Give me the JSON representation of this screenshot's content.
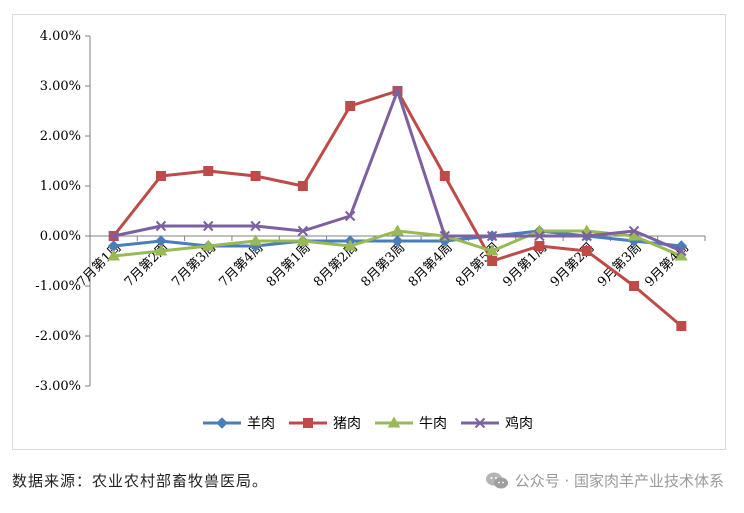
{
  "chart_data": {
    "type": "line",
    "categories": [
      "7月第1周",
      "7月第2周",
      "7月第3周",
      "7月第4周",
      "8月第1周",
      "8月第2周",
      "8月第3周",
      "8月第4周",
      "8月第5周",
      "9月第1周",
      "9月第2周",
      "9月第3周",
      "9月第4周"
    ],
    "series": [
      {
        "name": "羊肉",
        "color": "#4a7ebb",
        "marker": "diamond",
        "values": [
          -0.2,
          -0.1,
          -0.2,
          -0.2,
          -0.1,
          -0.1,
          -0.1,
          -0.1,
          0.0,
          0.1,
          0.0,
          -0.1,
          -0.2
        ]
      },
      {
        "name": "猪肉",
        "color": "#be4b48",
        "marker": "square",
        "values": [
          0.0,
          1.2,
          1.3,
          1.2,
          1.0,
          2.6,
          2.9,
          1.2,
          -0.5,
          -0.2,
          -0.3,
          -1.0,
          -1.8
        ]
      },
      {
        "name": "牛肉",
        "color": "#98b954",
        "marker": "triangle",
        "values": [
          -0.4,
          -0.3,
          -0.2,
          -0.1,
          -0.1,
          -0.2,
          0.1,
          0.0,
          -0.3,
          0.1,
          0.1,
          0.0,
          -0.4
        ]
      },
      {
        "name": "鸡肉",
        "color": "#7d60a0",
        "marker": "x",
        "values": [
          0.0,
          0.2,
          0.2,
          0.2,
          0.1,
          0.4,
          2.9,
          0.0,
          0.0,
          0.0,
          0.0,
          0.1,
          -0.3
        ]
      }
    ],
    "y_ticks": [
      "4.00%",
      "3.00%",
      "2.00%",
      "1.00%",
      "0.00%",
      "-1.00%",
      "-2.00%",
      "-3.00%"
    ],
    "ylim": [
      -3,
      4
    ],
    "grid": false,
    "legend_position": "bottom"
  },
  "footer": {
    "source": "数据来源：农业农村部畜牧兽医局。",
    "watermark": "公众号 · 国家肉羊产业技术体系"
  }
}
